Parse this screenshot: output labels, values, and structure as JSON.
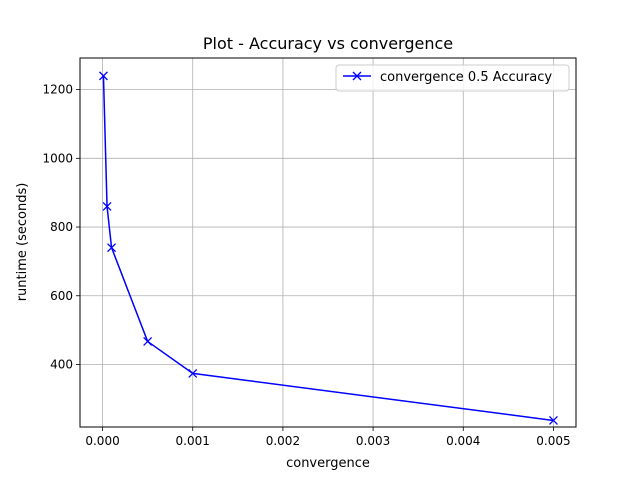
{
  "chart_data": {
    "type": "line",
    "title": "Plot - Accuracy vs convergence",
    "xlabel": "convergence",
    "ylabel": "runtime (seconds)",
    "xlim": [
      -0.00025,
      0.00525
    ],
    "ylim": [
      218,
      1292
    ],
    "xticks": [
      0.0,
      0.001,
      0.002,
      0.003,
      0.004,
      0.005
    ],
    "xtick_labels": [
      "0.000",
      "0.001",
      "0.002",
      "0.003",
      "0.004",
      "0.005"
    ],
    "yticks": [
      400,
      600,
      800,
      1000,
      1200
    ],
    "ytick_labels": [
      "400",
      "600",
      "800",
      "1000",
      "1200"
    ],
    "grid": true,
    "legend_position": "upper right",
    "series": [
      {
        "name": "convergence 0.5 Accuracy",
        "color": "#0000ff",
        "marker": "x",
        "x": [
          1e-05,
          5e-05,
          0.0001,
          0.0005,
          0.001,
          0.005
        ],
        "y": [
          1240,
          860,
          740,
          467,
          374,
          237
        ]
      }
    ]
  }
}
